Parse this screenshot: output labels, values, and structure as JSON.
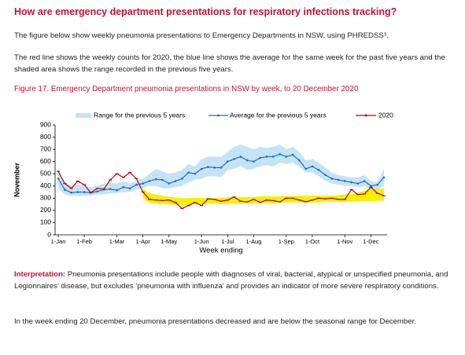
{
  "heading": "How are emergency department presentations for respiratory infections tracking?",
  "paragraphs": [
    "The figure below show weekly pneumonia presentations to Emergency Departments in NSW, using PHREDSS³.",
    "The red line shows the weekly counts for 2020, the blue line shows the average for the same week for the past five years and the shaded area shows the range recorded in the previous five years."
  ],
  "figure_caption": "Figure 17. Emergency Department pneumonia presentations in NSW by week, to 20 December 2020",
  "chart_data": {
    "type": "line",
    "xlabel": "Week ending",
    "ylabel": "November",
    "categories": [
      "1-Jan",
      null,
      null,
      null,
      "1-Feb",
      null,
      null,
      null,
      null,
      "1-Mar",
      null,
      null,
      null,
      "1-Apr",
      null,
      null,
      null,
      "1-May",
      null,
      null,
      null,
      null,
      "1-Jun",
      null,
      null,
      null,
      "1-Jul",
      null,
      null,
      null,
      "1-Aug",
      null,
      null,
      null,
      null,
      "1-Sep",
      null,
      null,
      null,
      "1-Oct",
      null,
      null,
      null,
      null,
      "1-Nov",
      null,
      null,
      null,
      "1-Dec",
      null,
      null
    ],
    "ylim": [
      0,
      900
    ],
    "yticks": [
      0,
      100,
      200,
      300,
      400,
      500,
      600,
      700,
      800,
      900
    ],
    "range": {
      "name": "Range for the previous 5 years",
      "color": "#c5e3f6",
      "low": [
        380,
        330,
        320,
        320,
        320,
        320,
        330,
        330,
        340,
        340,
        350,
        350,
        370,
        380,
        400,
        400,
        380,
        380,
        390,
        400,
        430,
        450,
        460,
        480,
        480,
        470,
        530,
        540,
        560,
        530,
        540,
        560,
        570,
        560,
        590,
        580,
        590,
        560,
        510,
        510,
        480,
        440,
        420,
        410,
        400,
        400,
        390,
        400,
        370,
        370,
        400
      ],
      "high": [
        520,
        430,
        400,
        410,
        400,
        390,
        400,
        420,
        430,
        420,
        440,
        420,
        440,
        460,
        500,
        540,
        520,
        500,
        510,
        530,
        580,
        560,
        620,
        640,
        640,
        640,
        680,
        720,
        740,
        720,
        700,
        720,
        710,
        720,
        740,
        700,
        720,
        680,
        610,
        620,
        590,
        550,
        510,
        490,
        480,
        470,
        470,
        490,
        440,
        430,
        540
      ]
    },
    "highlight": {
      "color": "#f2f200",
      "low": [
        null,
        null,
        null,
        null,
        null,
        null,
        null,
        null,
        null,
        null,
        null,
        null,
        null,
        300,
        260,
        255,
        250,
        250,
        245,
        245,
        245,
        250,
        250,
        255,
        255,
        255,
        255,
        255,
        255,
        255,
        255,
        260,
        260,
        260,
        260,
        265,
        265,
        265,
        265,
        265,
        265,
        270,
        270,
        270,
        270,
        270,
        275,
        275,
        275,
        280,
        280
      ],
      "high": [
        null,
        null,
        null,
        null,
        null,
        null,
        null,
        null,
        null,
        null,
        null,
        null,
        null,
        380,
        340,
        330,
        320,
        310,
        305,
        300,
        300,
        305,
        300,
        300,
        300,
        305,
        305,
        310,
        310,
        310,
        310,
        315,
        315,
        315,
        315,
        320,
        320,
        320,
        320,
        320,
        320,
        320,
        320,
        325,
        330,
        335,
        345,
        360,
        370,
        375,
        380
      ]
    },
    "series": [
      {
        "name": "Average for the previous 5 years",
        "color": "#1f6fb4",
        "values": [
          460,
          370,
          345,
          350,
          350,
          345,
          355,
          370,
          375,
          365,
          390,
          380,
          410,
          420,
          440,
          455,
          450,
          420,
          440,
          460,
          510,
          500,
          540,
          555,
          550,
          550,
          600,
          620,
          640,
          610,
          600,
          630,
          640,
          640,
          660,
          640,
          655,
          610,
          540,
          560,
          530,
          490,
          460,
          450,
          440,
          430,
          420,
          440,
          400,
          410,
          470
        ]
      },
      {
        "name": "2020",
        "color": "#c00000",
        "values": [
          520,
          420,
          380,
          440,
          410,
          345,
          380,
          375,
          450,
          500,
          470,
          510,
          460,
          350,
          290,
          285,
          280,
          285,
          265,
          215,
          240,
          265,
          240,
          295,
          290,
          275,
          285,
          310,
          275,
          270,
          290,
          265,
          285,
          280,
          270,
          300,
          300,
          285,
          270,
          285,
          300,
          295,
          300,
          290,
          290,
          370,
          330,
          335,
          390,
          340,
          320
        ]
      }
    ]
  },
  "interpretation": {
    "label": "Interpretation:",
    "text": "Pneumonia presentations include people with diagnoses of viral, bacterial, atypical or unspecified pneumonia, and Legionnaires’ disease, but excludes ‘pneumonia with influenza’ and provides an indicator of more severe respiratory conditions."
  },
  "closing": "In the week ending 20 December, pneumonia presentations decreased and are below the seasonal range for December."
}
